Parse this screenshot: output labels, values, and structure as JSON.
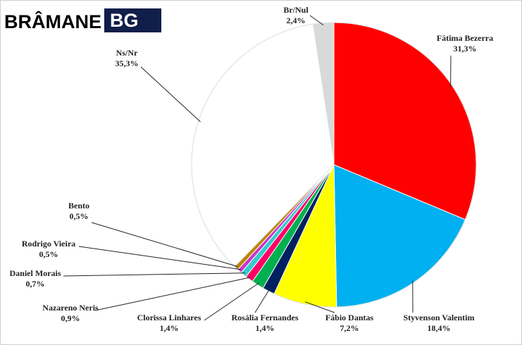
{
  "logo": {
    "wordmark": "BRÂMANE",
    "mark": "BG"
  },
  "chart_data": {
    "type": "pie",
    "title": "",
    "start_angle_deg": 0,
    "direction": "clockwise",
    "slices": [
      {
        "label": "Fátima Bezerra",
        "value": 31.3,
        "value_text": "31,3%",
        "color": "#ff0000"
      },
      {
        "label": "Styvenson Valentim",
        "value": 18.4,
        "value_text": "18,4%",
        "color": "#00b0f0"
      },
      {
        "label": "Fábio Dantas",
        "value": 7.2,
        "value_text": "7,2%",
        "color": "#ffff00"
      },
      {
        "label": "Rosália Fernandes",
        "value": 1.4,
        "value_text": "1,4%",
        "color": "#002060"
      },
      {
        "label": "Clorissa Linhares",
        "value": 1.4,
        "value_text": "1,4%",
        "color": "#00b050"
      },
      {
        "label": "Nazareno Neris",
        "value": 0.9,
        "value_text": "0,9%",
        "color": "#ff0066"
      },
      {
        "label": "Daniel Morais",
        "value": 0.7,
        "value_text": "0,7%",
        "color": "#33cccc"
      },
      {
        "label": "Rodrigo Vieira",
        "value": 0.5,
        "value_text": "0,5%",
        "color": "#cc33cc"
      },
      {
        "label": "Bento",
        "value": 0.5,
        "value_text": "0,5%",
        "color": "#b8860b"
      },
      {
        "label": "Ns/Nr",
        "value": 35.3,
        "value_text": "35,3%",
        "color": "#ffffff"
      },
      {
        "label": "Br/Nul",
        "value": 2.4,
        "value_text": "2,4%",
        "color": "#d9d9d9"
      }
    ]
  }
}
